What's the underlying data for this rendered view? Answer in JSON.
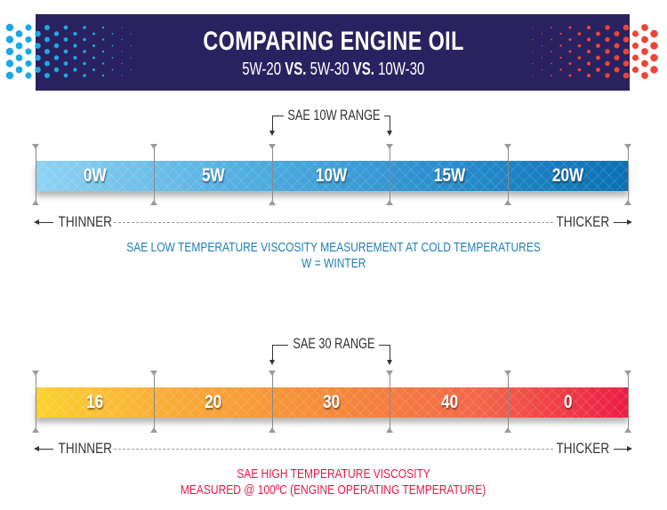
{
  "header": {
    "title": "COMPARING ENGINE OIL",
    "subtitle_parts": [
      "5W-20",
      "VS.",
      "5W-30",
      "VS.",
      "10W-30"
    ],
    "background_color": "#2a2260",
    "left_dots_color": "#1ba9e1",
    "right_dots_color": "#ee4437"
  },
  "cold_scale": {
    "range_label": "SAE 10W RANGE",
    "range_start_index": 2,
    "range_end_index": 3,
    "segments": [
      "0W",
      "5W",
      "10W",
      "15W",
      "20W"
    ],
    "gradient_start": "#8fd3f2",
    "gradient_end": "#0a6fb3",
    "thinner_label": "THINNER",
    "thicker_label": "THICKER",
    "caption_line1": "SAE LOW TEMPERATURE VISCOSITY MEASUREMENT AT COLD TEMPERATURES",
    "caption_line2": "W = WINTER",
    "caption_color": "#1d7fb6"
  },
  "hot_scale": {
    "range_label": "SAE 30 RANGE",
    "range_start_index": 2,
    "range_end_index": 3,
    "segments": [
      "16",
      "20",
      "30",
      "40",
      "0"
    ],
    "gradient_start": "#fbd230",
    "gradient_mid": "#f58a3a",
    "gradient_end": "#ec1c46",
    "thinner_label": "THINNER",
    "thicker_label": "THICKER",
    "caption_line1": "SAE HIGH TEMPERATURE VISCOSITY",
    "caption_line2": "MEASURED @ 100ºC (ENGINE OPERATING TEMPERATURE)",
    "caption_color": "#e8194b"
  }
}
